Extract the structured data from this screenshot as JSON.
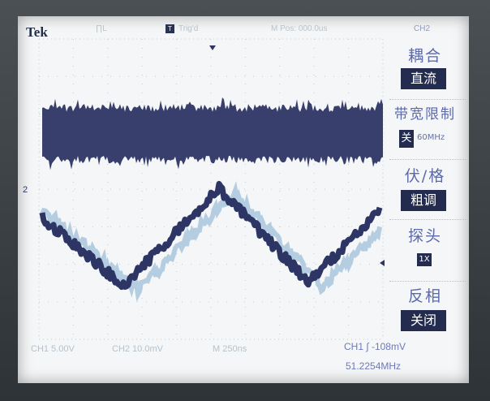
{
  "header": {
    "brand": "Tek",
    "run_state": "∏L",
    "trigger_icon": "T",
    "trigger_status": "Trig'd",
    "position": "M Pos: 000.0us",
    "channel": "CH2"
  },
  "menu": {
    "coupling_title": "耦合",
    "coupling_value": "直流",
    "bw_title": "带宽限制",
    "bw_value": "关",
    "bw_value_suffix": "60MHz",
    "volts_title": "伏/格",
    "volts_value": "粗调",
    "probe_title": "探头",
    "probe_value": "1X",
    "invert_title": "反相",
    "invert_value": "关闭"
  },
  "status": {
    "ch1": "CH1 5.00V",
    "ch2": "CH2 10.0mV",
    "timebase": "M 250ns",
    "trigger": "CH1 ∫ -108mV",
    "frequency": "51.2254MHz"
  },
  "markers": {
    "ch2_ground": "2"
  },
  "colors": {
    "screen_bg": "#f4f6f7",
    "trace_dark": "#2d3565",
    "trace_light": "#a9c6dd",
    "menu_text": "#5d69aa",
    "menu_highlight": "#232c4f"
  }
}
